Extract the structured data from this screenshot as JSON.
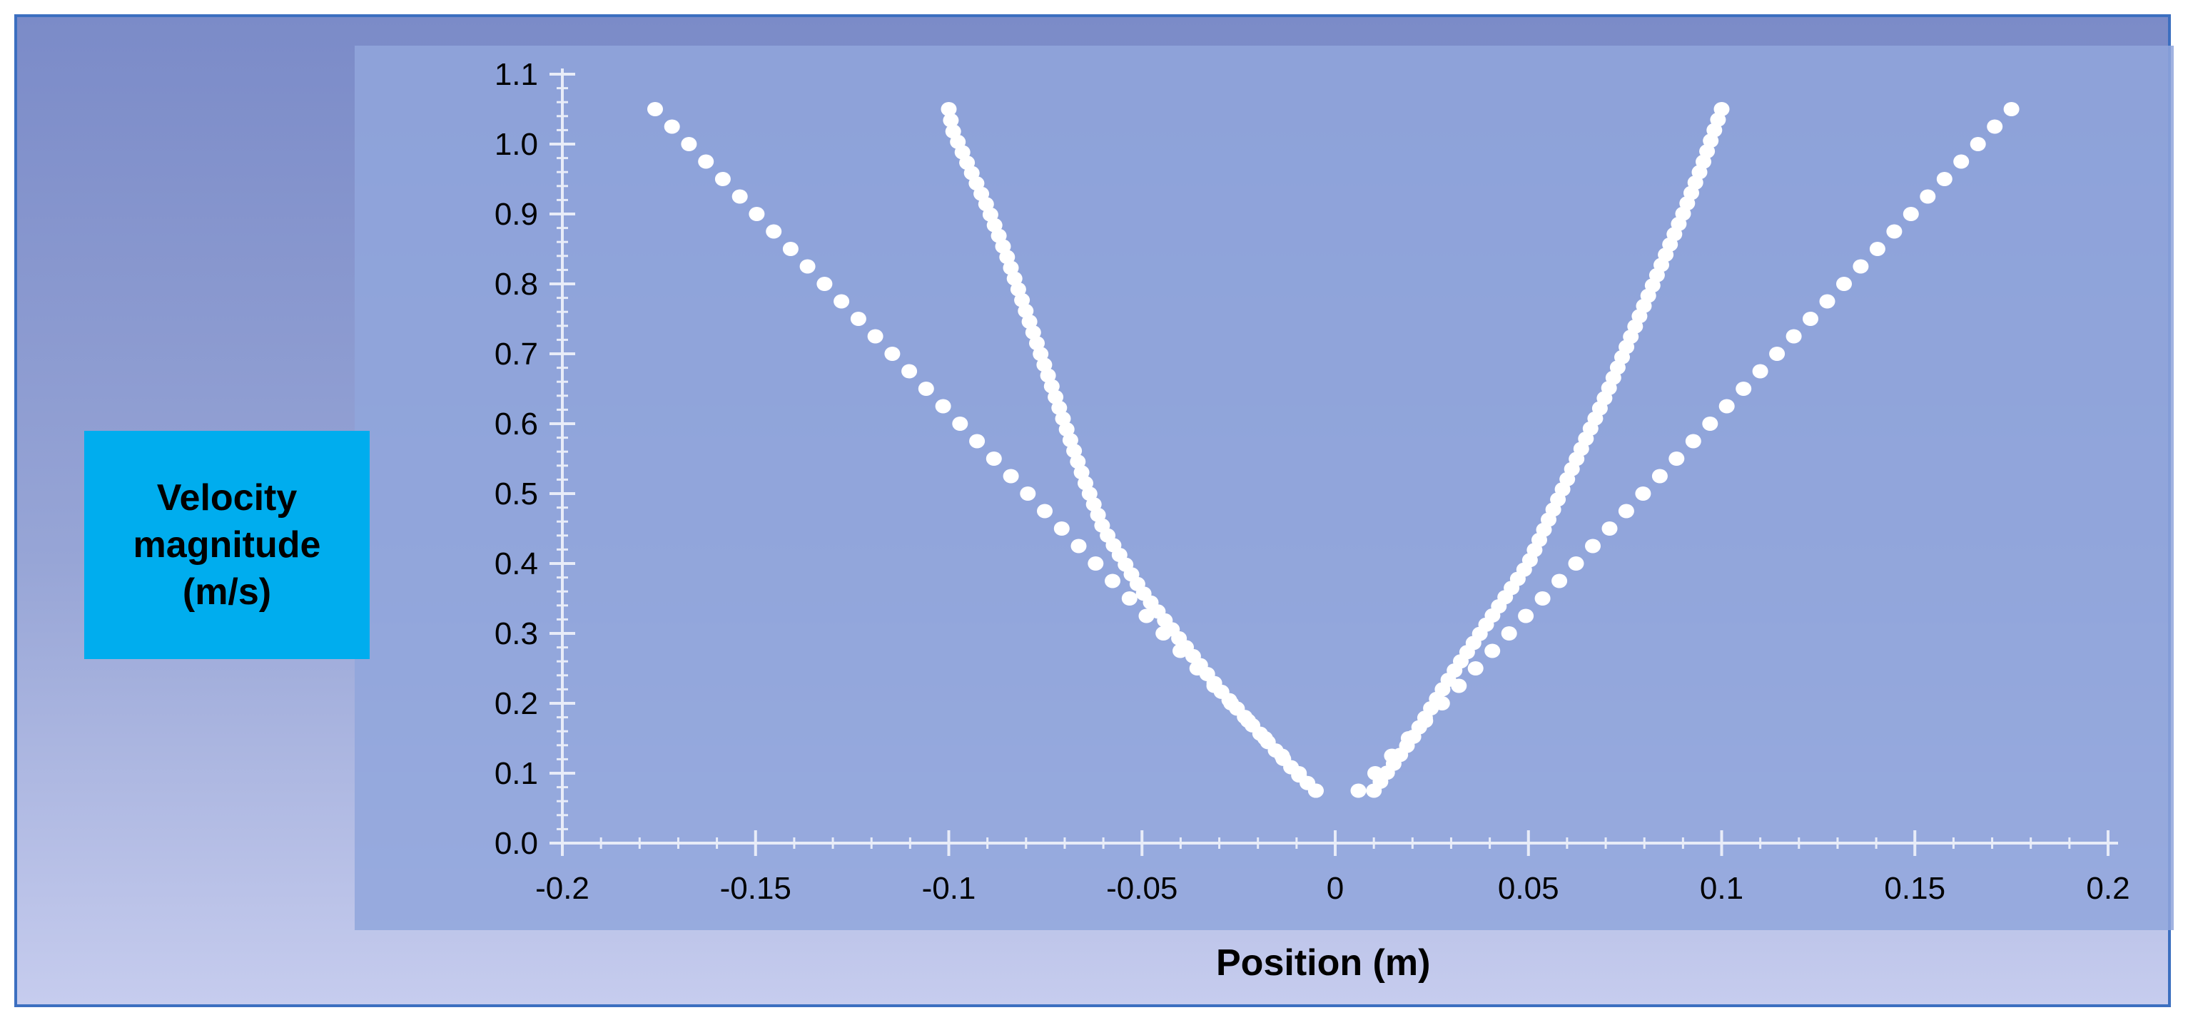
{
  "colors": {
    "frame_border": "#3c6fc0",
    "panel": "#91a6dc",
    "ylabel_box": "#00adee",
    "points": "#ffffff",
    "axis": "#e8ecf8"
  },
  "chart_data": {
    "type": "scatter",
    "title": "",
    "xlabel": "Position (m)",
    "ylabel_lines": [
      "Velocity",
      "magnitude",
      "(m/s)"
    ],
    "xlim": [
      -0.2,
      0.2
    ],
    "ylim": [
      0.0,
      1.1
    ],
    "xticks": [
      "-0.2",
      "-0.15",
      "-0.1",
      "-0.05",
      "0",
      "0.05",
      "0.1",
      "0.15",
      "0.2"
    ],
    "yticks": [
      "0.0",
      "0.1",
      "0.2",
      "0.3",
      "0.4",
      "0.5",
      "0.6",
      "0.7",
      "0.8",
      "0.9",
      "1.0",
      "1.1"
    ],
    "grid": false,
    "legend": false,
    "series": [
      {
        "x": [
          -0.176,
          -0.005
        ],
        "y": [
          1.05,
          0.075
        ],
        "points": 40
      },
      {
        "x": [
          0.006,
          0.175
        ],
        "y": [
          0.075,
          1.05
        ],
        "points": 40
      },
      {
        "x": [
          -0.1,
          -0.099,
          -0.095,
          -0.09,
          -0.085,
          -0.08,
          -0.075,
          -0.07,
          -0.065,
          -0.06,
          -0.05,
          -0.04,
          -0.03,
          -0.02,
          -0.01,
          -0.005
        ],
        "y": [
          1.05,
          1.02,
          0.97,
          0.91,
          0.84,
          0.76,
          0.68,
          0.6,
          0.52,
          0.45,
          0.36,
          0.29,
          0.22,
          0.16,
          0.1,
          0.075
        ],
        "points": 70
      },
      {
        "x": [
          0.01,
          0.02,
          0.03,
          0.04,
          0.05,
          0.06,
          0.07,
          0.08,
          0.09,
          0.095,
          0.1
        ],
        "y": [
          0.075,
          0.15,
          0.24,
          0.32,
          0.4,
          0.52,
          0.64,
          0.77,
          0.9,
          0.97,
          1.05
        ],
        "points": 70
      }
    ]
  }
}
